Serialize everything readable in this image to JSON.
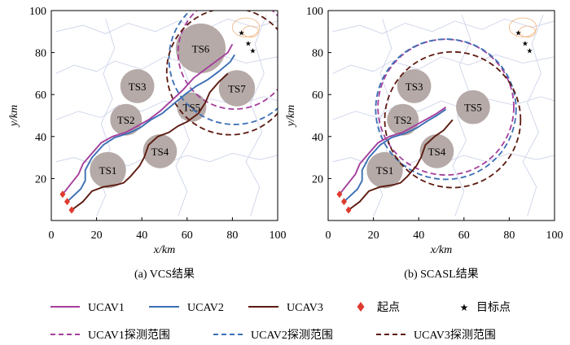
{
  "colors": {
    "ucav1": "#a43f9c",
    "ucav2": "#3b6fb4",
    "ucav3": "#5c1a10",
    "threat_fill": "#b5aaa7",
    "start_marker": "#e03a2f",
    "target_marker": "#d9322a",
    "contour": "#c8cfe8",
    "contour_warm": "#f0b27a"
  },
  "icons": {
    "start": "diamond",
    "target": "star"
  },
  "panels": [
    {
      "caption": "(a) VCS结果"
    },
    {
      "caption": "(b) SCASL结果"
    }
  ],
  "legend": {
    "row1": [
      "UCAV1",
      "UCAV2",
      "UCAV3",
      "起点",
      "目标点"
    ],
    "row2": [
      "UCAV1探测范围",
      "UCAV2探测范围",
      "UCAV3探测范围"
    ]
  },
  "chart_data": [
    {
      "type": "line",
      "xlabel": "x/km",
      "ylabel": "y/km",
      "xlim": [
        0,
        100
      ],
      "ylim": [
        0,
        100
      ],
      "xticks": [
        0,
        20,
        40,
        60,
        80,
        100
      ],
      "yticks": [
        20,
        40,
        60,
        80,
        100
      ],
      "threats": [
        {
          "name": "TS1",
          "x": 25,
          "y": 24,
          "r": 8
        },
        {
          "name": "TS2",
          "x": 33,
          "y": 48,
          "r": 7
        },
        {
          "name": "TS3",
          "x": 38,
          "y": 64,
          "r": 7.5
        },
        {
          "name": "TS4",
          "x": 48,
          "y": 33,
          "r": 7.5
        },
        {
          "name": "TS5",
          "x": 62,
          "y": 54,
          "r": 6.5
        },
        {
          "name": "TS6",
          "x": 66,
          "y": 82,
          "r": 11
        },
        {
          "name": "TS7",
          "x": 82,
          "y": 63,
          "r": 8
        }
      ],
      "starts": [
        [
          5,
          12.5
        ],
        [
          7,
          9
        ],
        [
          9,
          5
        ]
      ],
      "targets": [
        [
          84,
          89.5
        ],
        [
          87,
          84.5
        ],
        [
          89,
          81
        ]
      ],
      "series": [
        {
          "name": "UCAV1",
          "points": [
            [
              5,
              12.5
            ],
            [
              12,
              22
            ],
            [
              14,
              27
            ],
            [
              18,
              32
            ],
            [
              22,
              37
            ],
            [
              27,
              40
            ],
            [
              33,
              42
            ],
            [
              38,
              45
            ],
            [
              43,
              48
            ],
            [
              48,
              52
            ],
            [
              53,
              57
            ],
            [
              58,
              62
            ],
            [
              63,
              68
            ],
            [
              68,
              72
            ],
            [
              73,
              76
            ],
            [
              78,
              80
            ],
            [
              80,
              84
            ]
          ]
        },
        {
          "name": "UCAV2",
          "points": [
            [
              7,
              9
            ],
            [
              13,
              15
            ],
            [
              15,
              19
            ],
            [
              15,
              24
            ],
            [
              18,
              30
            ],
            [
              23,
              36
            ],
            [
              28,
              39.5
            ],
            [
              34,
              41.5
            ],
            [
              39,
              44
            ],
            [
              44,
              48
            ],
            [
              49,
              51
            ],
            [
              54,
              55.5
            ],
            [
              59,
              60
            ],
            [
              64,
              64
            ],
            [
              69,
              67
            ],
            [
              74,
              71
            ],
            [
              79,
              75.5
            ],
            [
              81,
              79
            ]
          ]
        },
        {
          "name": "UCAV3",
          "points": [
            [
              9,
              5
            ],
            [
              14,
              9
            ],
            [
              18,
              14
            ],
            [
              23,
              16
            ],
            [
              29,
              17
            ],
            [
              32,
              18
            ],
            [
              35,
              21
            ],
            [
              39,
              26
            ],
            [
              41,
              30
            ],
            [
              43,
              36
            ],
            [
              47,
              40
            ],
            [
              52,
              42
            ],
            [
              56,
              45
            ],
            [
              60,
              47
            ],
            [
              65,
              51
            ],
            [
              68,
              56
            ],
            [
              70,
              61
            ],
            [
              74,
              66
            ],
            [
              78,
              70
            ]
          ]
        }
      ],
      "detection": [
        {
          "name": "UCAV1探测范围",
          "x": 81,
          "y": 80,
          "r": 25
        },
        {
          "name": "UCAV2探测范围",
          "x": 81,
          "y": 77,
          "r": 29
        },
        {
          "name": "UCAV3探测范围",
          "x": 79,
          "y": 71,
          "r": 28
        }
      ]
    },
    {
      "type": "line",
      "xlabel": "x/km",
      "ylabel": "y/km",
      "xlim": [
        0,
        100
      ],
      "ylim": [
        0,
        100
      ],
      "xticks": [
        0,
        20,
        40,
        60,
        80,
        100
      ],
      "yticks": [
        20,
        40,
        60,
        80,
        100
      ],
      "threats": [
        {
          "name": "TS1",
          "x": 25,
          "y": 24,
          "r": 8
        },
        {
          "name": "TS2",
          "x": 33,
          "y": 48,
          "r": 7
        },
        {
          "name": "TS3",
          "x": 38,
          "y": 64,
          "r": 7.5
        },
        {
          "name": "TS4",
          "x": 48,
          "y": 33,
          "r": 7.5
        },
        {
          "name": "TS5",
          "x": 64,
          "y": 54,
          "r": 7.5
        }
      ],
      "starts": [
        [
          5,
          12.5
        ],
        [
          7,
          9
        ],
        [
          9,
          5
        ]
      ],
      "targets": [
        [
          84,
          89.5
        ],
        [
          87,
          84.5
        ],
        [
          89,
          81
        ]
      ],
      "series": [
        {
          "name": "UCAV1",
          "points": [
            [
              5,
              12.5
            ],
            [
              12,
              22
            ],
            [
              14,
              27
            ],
            [
              18,
              32
            ],
            [
              22,
              37
            ],
            [
              27,
              40
            ],
            [
              33,
              42
            ],
            [
              38,
              45
            ],
            [
              43,
              48
            ],
            [
              48,
              51
            ],
            [
              52,
              54
            ]
          ]
        },
        {
          "name": "UCAV2",
          "points": [
            [
              7,
              9
            ],
            [
              13,
              15
            ],
            [
              15,
              19
            ],
            [
              15,
              24
            ],
            [
              18,
              30
            ],
            [
              23,
              36
            ],
            [
              28,
              39.5
            ],
            [
              34,
              41.5
            ],
            [
              39,
              44
            ],
            [
              44,
              47.5
            ],
            [
              48,
              50
            ],
            [
              52,
              53
            ]
          ]
        },
        {
          "name": "UCAV3",
          "points": [
            [
              9,
              5
            ],
            [
              14,
              9
            ],
            [
              18,
              14
            ],
            [
              23,
              16
            ],
            [
              29,
              17
            ],
            [
              32,
              18
            ],
            [
              35,
              21
            ],
            [
              39,
              26
            ],
            [
              41,
              30
            ],
            [
              43,
              36
            ],
            [
              47,
              40
            ],
            [
              51,
              43
            ],
            [
              55,
              48
            ]
          ]
        }
      ],
      "detection": [
        {
          "name": "UCAV1探测范围",
          "x": 52,
          "y": 54,
          "r": 30
        },
        {
          "name": "UCAV2探测范围",
          "x": 52,
          "y": 53,
          "r": 31
        },
        {
          "name": "UCAV3探测范围",
          "x": 55,
          "y": 48,
          "r": 30
        }
      ]
    }
  ]
}
